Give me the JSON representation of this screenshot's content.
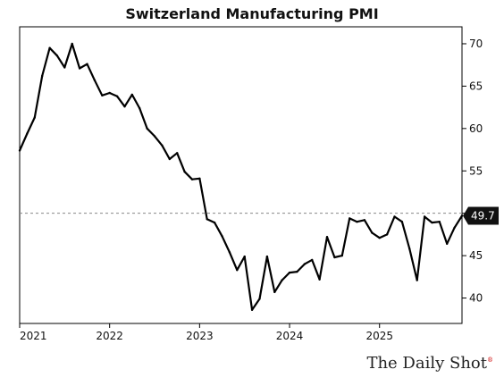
{
  "chart_data": {
    "type": "line",
    "title": "Switzerland Manufacturing PMI",
    "xlabel": "",
    "ylabel": "",
    "x_ticks": [
      "2021",
      "2022",
      "2023",
      "2024",
      "2025"
    ],
    "y_ticks": [
      "40",
      "45",
      "50",
      "55",
      "60",
      "65",
      "70"
    ],
    "ylim": [
      37,
      72
    ],
    "xlim": [
      "2021-01",
      "2025-12"
    ],
    "reference_line": 50,
    "last_value_label": "49.7",
    "series": [
      {
        "x": [
          "2021-01",
          "2021-02",
          "2021-03",
          "2021-04",
          "2021-05",
          "2021-06",
          "2021-07",
          "2021-08",
          "2021-09",
          "2021-10",
          "2021-11",
          "2021-12",
          "2022-01",
          "2022-02",
          "2022-03",
          "2022-04",
          "2022-05",
          "2022-06",
          "2022-07",
          "2022-08",
          "2022-09",
          "2022-10",
          "2022-11",
          "2022-12",
          "2023-01",
          "2023-02",
          "2023-03",
          "2023-04",
          "2023-05",
          "2023-06",
          "2023-07",
          "2023-08",
          "2023-09",
          "2023-10",
          "2023-11",
          "2023-12",
          "2024-01",
          "2024-02",
          "2024-03",
          "2024-04",
          "2024-05",
          "2024-06",
          "2024-07",
          "2024-08",
          "2024-09",
          "2024-10",
          "2024-11",
          "2024-12",
          "2025-01",
          "2025-02",
          "2025-03",
          "2025-04",
          "2025-05",
          "2025-06",
          "2025-07",
          "2025-08",
          "2025-09",
          "2025-10",
          "2025-11",
          "2025-12"
        ],
        "values": [
          57.4,
          59.4,
          61.3,
          66.2,
          69.5,
          68.6,
          67.2,
          70.0,
          67.1,
          67.6,
          65.7,
          63.9,
          64.2,
          63.8,
          62.6,
          64.0,
          62.4,
          60.0,
          59.1,
          58.0,
          56.4,
          57.1,
          54.9,
          54.0,
          54.1,
          49.3,
          48.9,
          47.3,
          45.4,
          43.3,
          44.9,
          38.6,
          39.9,
          44.9,
          40.7,
          42.1,
          43.0,
          43.1,
          44.0,
          44.5,
          42.2,
          47.2,
          44.8,
          45.0,
          49.4,
          49.0,
          49.2,
          47.7,
          47.1,
          47.5,
          49.6,
          49.0,
          45.8,
          42.1,
          49.6,
          48.9,
          49.0,
          46.4,
          48.3,
          49.7
        ]
      }
    ]
  },
  "brand": {
    "name": "The Daily Shot",
    "mark": "®"
  }
}
